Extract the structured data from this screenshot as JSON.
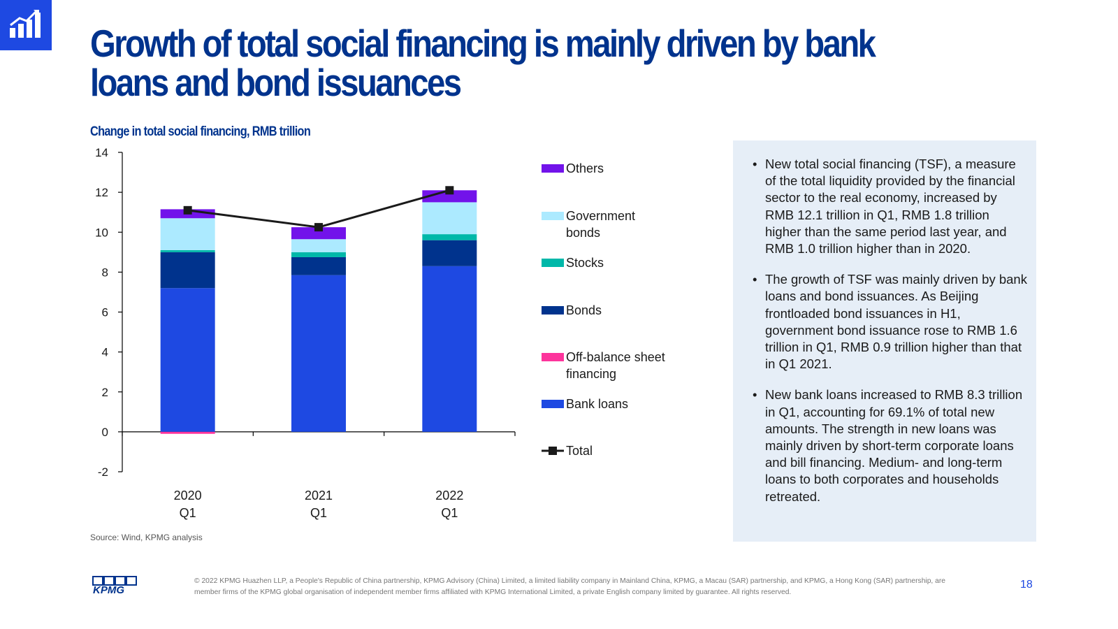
{
  "title": "Growth of total social financing is mainly driven by bank loans and bond issuances",
  "subtitle": "Change in total social financing, RMB trillion",
  "source": "Source: Wind, KPMG analysis",
  "bullets": [
    "New total social financing (TSF), a measure of the total liquidity provided by the financial sector to the real economy, increased by RMB 12.1 trillion in Q1, RMB 1.8 trillion higher than the same period last year, and RMB 1.0 trillion higher than in 2020.",
    "The growth of TSF was mainly driven by bank loans and bond issuances. As Beijing frontloaded bond issuances in H1, government bond issuance rose to RMB 1.6 trillion in Q1, RMB 0.9 trillion higher than that in Q1 2021.",
    "New bank loans increased to RMB 8.3 trillion in Q1, accounting for 69.1% of total new amounts. The strength in new loans was mainly driven by short-term corporate loans and bill financing. Medium- and long-term loans to both corporates and households retreated."
  ],
  "footer": "© 2022 KPMG Huazhen LLP, a People's Republic of China partnership, KPMG Advisory (China) Limited, a limited liability company in Mainland China, KPMG, a Macau (SAR) partnership, and KPMG, a Hong Kong (SAR) partnership, are member firms of the KPMG global organisation of independent member firms affiliated with KPMG International Limited, a private English company limited by guarantee. All rights reserved.",
  "page_number": "18",
  "logo_text": "KPMG",
  "corner_icon": "bar-chart-growth-icon",
  "colors": {
    "brand": "#00338d",
    "accent": "#1e49e2",
    "panel": "#e6eef7"
  },
  "chart_data": {
    "type": "bar",
    "stacked": true,
    "categories": [
      [
        "2020",
        "Q1"
      ],
      [
        "2021",
        "Q1"
      ],
      [
        "2022",
        "Q1"
      ]
    ],
    "ylim": [
      -2,
      14
    ],
    "yticks": [
      -2,
      0,
      2,
      4,
      6,
      8,
      10,
      12,
      14
    ],
    "series": [
      {
        "name": "Bank loans",
        "color": "#1e49e2",
        "values": [
          7.2,
          7.85,
          8.3
        ]
      },
      {
        "name": "Off-balance sheet financing",
        "color": "#fd349c",
        "values": [
          -0.1,
          0.0,
          0.0
        ]
      },
      {
        "name": "Bonds",
        "color": "#00338d",
        "values": [
          1.8,
          0.9,
          1.3
        ]
      },
      {
        "name": "Stocks",
        "color": "#00b8a9",
        "values": [
          0.1,
          0.25,
          0.3
        ]
      },
      {
        "name": "Government bonds",
        "color": "#acEAFF",
        "values": [
          1.6,
          0.65,
          1.6
        ]
      },
      {
        "name": "Others",
        "color": "#7213ea",
        "values": [
          0.45,
          0.6,
          0.6
        ]
      }
    ],
    "legend_order": [
      {
        "name": "Others",
        "lines": [
          "Others"
        ]
      },
      {
        "name": "Government bonds",
        "lines": [
          "Government",
          "bonds"
        ]
      },
      {
        "name": "Stocks",
        "lines": [
          "Stocks"
        ]
      },
      {
        "name": "Bonds",
        "lines": [
          "Bonds"
        ]
      },
      {
        "name": "Off-balance sheet financing",
        "lines": [
          "Off-balance sheet",
          "financing"
        ]
      },
      {
        "name": "Bank loans",
        "lines": [
          "Bank loans"
        ]
      }
    ],
    "total": {
      "name": "Total",
      "color": "#1a1a1a",
      "values": [
        11.1,
        10.25,
        12.1
      ]
    },
    "legend_position": "right"
  }
}
